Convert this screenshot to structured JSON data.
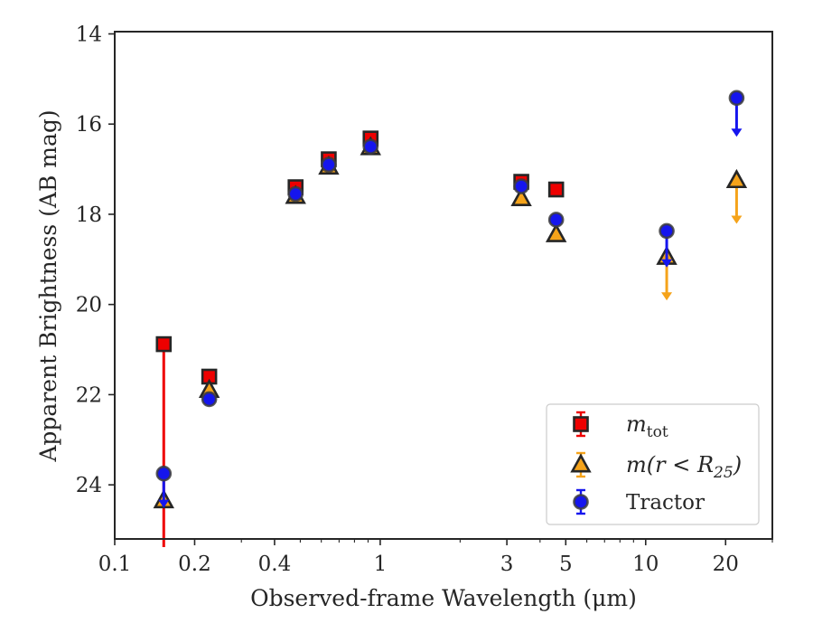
{
  "chart_data": {
    "type": "scatter",
    "title": "",
    "xlabel": "Observed-frame Wavelength (μm)",
    "ylabel": "Apparent Brightness (AB mag)",
    "x_scale": "log",
    "y_inverted": true,
    "xlim": [
      0.1,
      30
    ],
    "ylim": [
      25.2,
      13.95
    ],
    "x_ticks": [
      {
        "value": 0.1,
        "label": "0.1"
      },
      {
        "value": 0.2,
        "label": "0.2"
      },
      {
        "value": 0.4,
        "label": "0.4"
      },
      {
        "value": 1,
        "label": "1"
      },
      {
        "value": 3,
        "label": "3"
      },
      {
        "value": 5,
        "label": "5"
      },
      {
        "value": 10,
        "label": "10"
      },
      {
        "value": 20,
        "label": "20"
      }
    ],
    "y_ticks": [
      {
        "value": 14,
        "label": "14"
      },
      {
        "value": 16,
        "label": "16"
      },
      {
        "value": 18,
        "label": "18"
      },
      {
        "value": 20,
        "label": "20"
      },
      {
        "value": 22,
        "label": "22"
      },
      {
        "value": 24,
        "label": "24"
      }
    ],
    "grid": false,
    "legend_position": "bottom-right",
    "series": [
      {
        "key": "mtot",
        "name_base": "m",
        "name_sub": "tot",
        "marker": "square",
        "color": "#ee0000",
        "edge_color": "#262626",
        "errorbar_color": "#ee0000",
        "points": [
          {
            "x": 0.153,
            "y": 20.88,
            "err_down": 4.5
          },
          {
            "x": 0.227,
            "y": 21.6
          },
          {
            "x": 0.48,
            "y": 17.4
          },
          {
            "x": 0.64,
            "y": 16.78
          },
          {
            "x": 0.92,
            "y": 16.32
          },
          {
            "x": 3.4,
            "y": 17.28
          },
          {
            "x": 4.6,
            "y": 17.45
          }
        ]
      },
      {
        "key": "mr25",
        "name_base": "m",
        "name_expr": "(r < R",
        "name_sub": "25",
        "name_close": ")",
        "marker": "triangle",
        "color": "#f5a31a",
        "edge_color": "#262626",
        "errorbar_color": "#f5a31a",
        "points": [
          {
            "x": 0.153,
            "y": 24.35
          },
          {
            "x": 0.227,
            "y": 21.9
          },
          {
            "x": 0.48,
            "y": 17.6
          },
          {
            "x": 0.64,
            "y": 16.95
          },
          {
            "x": 0.92,
            "y": 16.52
          },
          {
            "x": 3.4,
            "y": 17.65
          },
          {
            "x": 4.6,
            "y": 18.45
          },
          {
            "x": 12,
            "y": 18.95,
            "upper_limit": 0.9
          },
          {
            "x": 22,
            "y": 17.25,
            "upper_limit": 0.9
          }
        ]
      },
      {
        "key": "tractor",
        "name": "Tractor",
        "marker": "circle",
        "color": "#1515ee",
        "edge_color": "#3d3d3d",
        "errorbar_color": "#1515ee",
        "points": [
          {
            "x": 0.153,
            "y": 23.75,
            "upper_limit": 0.7
          },
          {
            "x": 0.227,
            "y": 22.1
          },
          {
            "x": 0.48,
            "y": 17.55
          },
          {
            "x": 0.64,
            "y": 16.9
          },
          {
            "x": 0.92,
            "y": 16.5
          },
          {
            "x": 3.4,
            "y": 17.38
          },
          {
            "x": 4.6,
            "y": 18.12
          },
          {
            "x": 12,
            "y": 18.37,
            "upper_limit": 0.75
          },
          {
            "x": 22,
            "y": 15.42,
            "upper_limit": 0.8
          }
        ]
      }
    ]
  }
}
